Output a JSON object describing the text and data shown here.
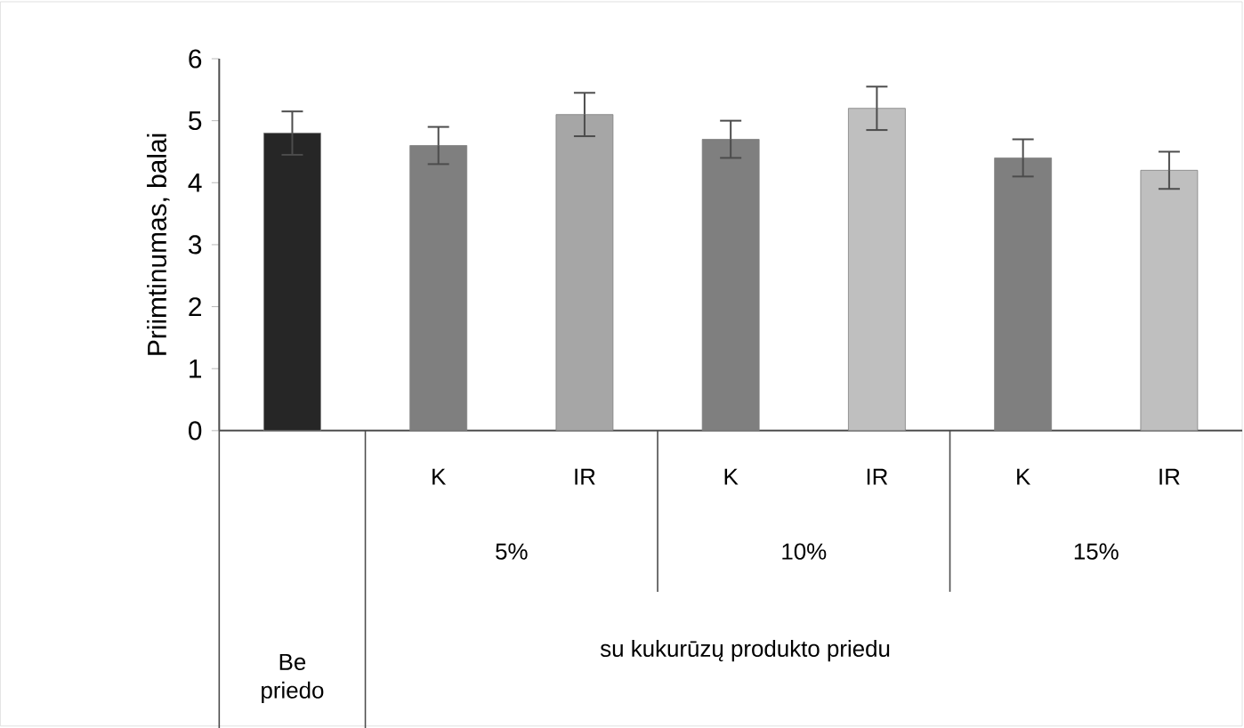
{
  "chart_data": {
    "type": "bar",
    "ylabel": "Priimtinumas, balai",
    "categories": [
      null,
      "K",
      "IR",
      "K",
      "IR",
      "K",
      "IR"
    ],
    "values": [
      4.8,
      4.6,
      5.1,
      4.7,
      5.2,
      4.4,
      4.2
    ],
    "errors": [
      0.35,
      0.3,
      0.35,
      0.3,
      0.35,
      0.3,
      0.3
    ],
    "colors": [
      "#262626",
      "#7f7f7f",
      "#a6a6a6",
      "#7f7f7f",
      "#bfbfbf",
      "#7f7f7f",
      "#bfbfbf"
    ],
    "ylim": [
      0,
      6
    ],
    "yticks": [
      0,
      1,
      2,
      3,
      4,
      5,
      6
    ],
    "grid": false,
    "annotations": [
      "5%",
      "10%",
      "15%",
      "Be priedo",
      "su kukurūzų produkto priedu"
    ]
  }
}
